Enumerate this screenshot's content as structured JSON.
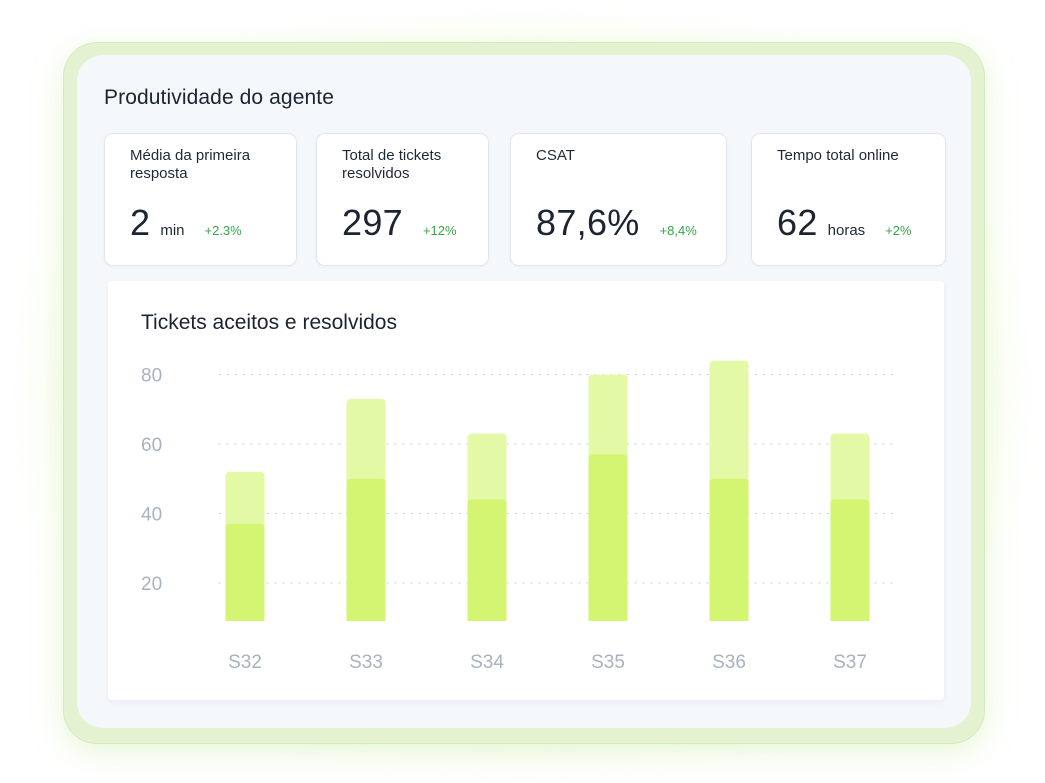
{
  "page": {
    "title": "Produtividade do agente"
  },
  "kpis": [
    {
      "label": "Média da primeira resposta",
      "value": "2",
      "unit": "min",
      "delta": "+2.3%"
    },
    {
      "label": "Total de tickets resolvidos",
      "value": "297",
      "unit": "",
      "delta": "+12%"
    },
    {
      "label": "CSAT",
      "value": "87,6%",
      "unit": "",
      "delta": "+8,4%"
    },
    {
      "label": "Tempo total online",
      "value": "62",
      "unit": "horas",
      "delta": "+2%"
    }
  ],
  "colors": {
    "accepted_bar": "#e4f9a6",
    "resolved_bar": "#d3f571",
    "delta_positive": "#3aa34a",
    "gridline": "#d5dbe2"
  },
  "chart_data": {
    "type": "bar",
    "title": "Tickets aceitos e resolvidos",
    "categories": [
      "S32",
      "S33",
      "S34",
      "S35",
      "S36",
      "S37"
    ],
    "series": [
      {
        "values": [
          52,
          73,
          63,
          80,
          84,
          63
        ]
      },
      {
        "values": [
          37,
          50,
          44,
          57,
          50,
          44
        ]
      }
    ],
    "yticks": [
      20,
      40,
      60,
      80
    ],
    "ylim": [
      9,
      84
    ],
    "grid": true,
    "legend": "none",
    "stacking": "overlay"
  }
}
